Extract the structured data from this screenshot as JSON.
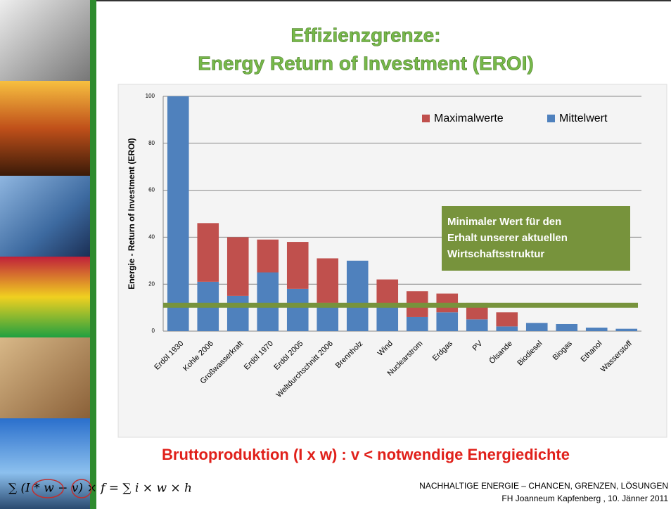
{
  "slide": {
    "title_lines": [
      "Effizienzgrenze:",
      "Energy Return of Investment (EROI)"
    ],
    "bottom_statement": "Bruttoproduktion (I x w) : v < notwendige Energiedichte",
    "formula": "∑ (I * w − v) × f = ∑ i × w × h",
    "footer_lines": [
      "NACHHALTIGE ENERGIE – CHANCEN, GRENZEN, LÖSUNGEN",
      "FH Joanneum Kapfenberg , 10. Jänner 2011"
    ]
  },
  "chart_data": {
    "type": "stacked_bar",
    "y_label": "Energie - Return of Investment (EROI)",
    "categories": [
      "Erdöl 1930",
      "Kohle 2006",
      "Großwasserkraft",
      "Erdöl 1970",
      "Erdöl 2005",
      "Weltdurchschnitt 2006",
      "Brennholz",
      "Wind",
      "Nuclearstrom",
      "Erdgas",
      "PV",
      "Ölsande",
      "Biodiesel",
      "Biogas",
      "Ethanol",
      "Wasserstoff"
    ],
    "series": [
      {
        "name": "Mittelwert",
        "color": "#4f81bd",
        "values": [
          100,
          21,
          15,
          25,
          18,
          12,
          30,
          11,
          6,
          8,
          5,
          2,
          3.5,
          3,
          1.5,
          1
        ]
      },
      {
        "name": "Maximalwerte",
        "color": "#c0504d",
        "values": [
          0,
          25,
          25,
          14,
          20,
          19,
          0,
          11,
          11,
          8,
          7,
          6,
          0,
          0,
          0,
          0
        ]
      }
    ],
    "ylim": [
      0,
      100
    ],
    "yticks": [
      0,
      20,
      40,
      60,
      80,
      100
    ],
    "grid": true,
    "threshold": 11,
    "threshold_color": "#77933c",
    "annotation_lines": [
      "Minimaler Wert für den",
      "Erhalt  unserer aktuellen",
      "Wirtschaftsstruktur"
    ]
  }
}
